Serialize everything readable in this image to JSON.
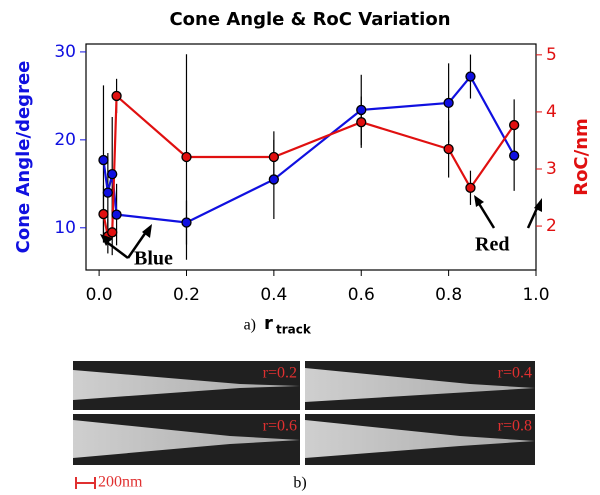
{
  "chart_data": {
    "type": "line",
    "title": "Cone Angle & RoC Variation",
    "xlabel_prefix": "a)",
    "xlabel": "r",
    "xlabel_sub": "track",
    "ylabel": "Cone Angle/degree",
    "y2label": "RoC/nm",
    "xlim": [
      -0.03,
      1.0
    ],
    "xticks": [
      {
        "value": 0,
        "label": "0.0"
      },
      0.2,
      0.4,
      0.6,
      0.8,
      {
        "value": 1,
        "label": "1.0"
      }
    ],
    "ylim": [
      5.2,
      30.9
    ],
    "yticks": [
      10,
      20,
      30
    ],
    "y2lim": [
      1.23,
      5.19
    ],
    "y2ticks": [
      2,
      3,
      4,
      5
    ],
    "x": [
      0.01,
      0.02,
      0.03,
      0.04,
      0.2,
      0.4,
      0.6,
      0.8,
      0.85,
      0.95
    ],
    "series": [
      {
        "name": "Blue",
        "color": "#1010e0",
        "axis": "y",
        "values": [
          17.7,
          14.0,
          16.1,
          11.5,
          10.6,
          15.5,
          23.4,
          24.2,
          27.2,
          18.2
        ],
        "errors": [
          8.5,
          4.5,
          6.5,
          3.5,
          2.5,
          4.5,
          4.0,
          4.5,
          2.5,
          4.0
        ]
      },
      {
        "name": "Red",
        "color": "#e01010",
        "axis": "y2",
        "values": [
          2.21,
          1.82,
          1.89,
          4.28,
          3.21,
          3.21,
          3.82,
          3.35,
          2.67,
          3.77
        ],
        "errors": [
          0.5,
          0.3,
          0.4,
          0.3,
          1.8,
          0.45,
          0.45,
          0.5,
          0.3,
          0.45
        ]
      }
    ],
    "annotations": [
      "Blue",
      "Red"
    ]
  },
  "figure_b": {
    "panels": [
      "r=0.2",
      "r=0.4",
      "r=0.6",
      "r=0.8"
    ],
    "scale_bar": "200nm",
    "label": "b)"
  }
}
